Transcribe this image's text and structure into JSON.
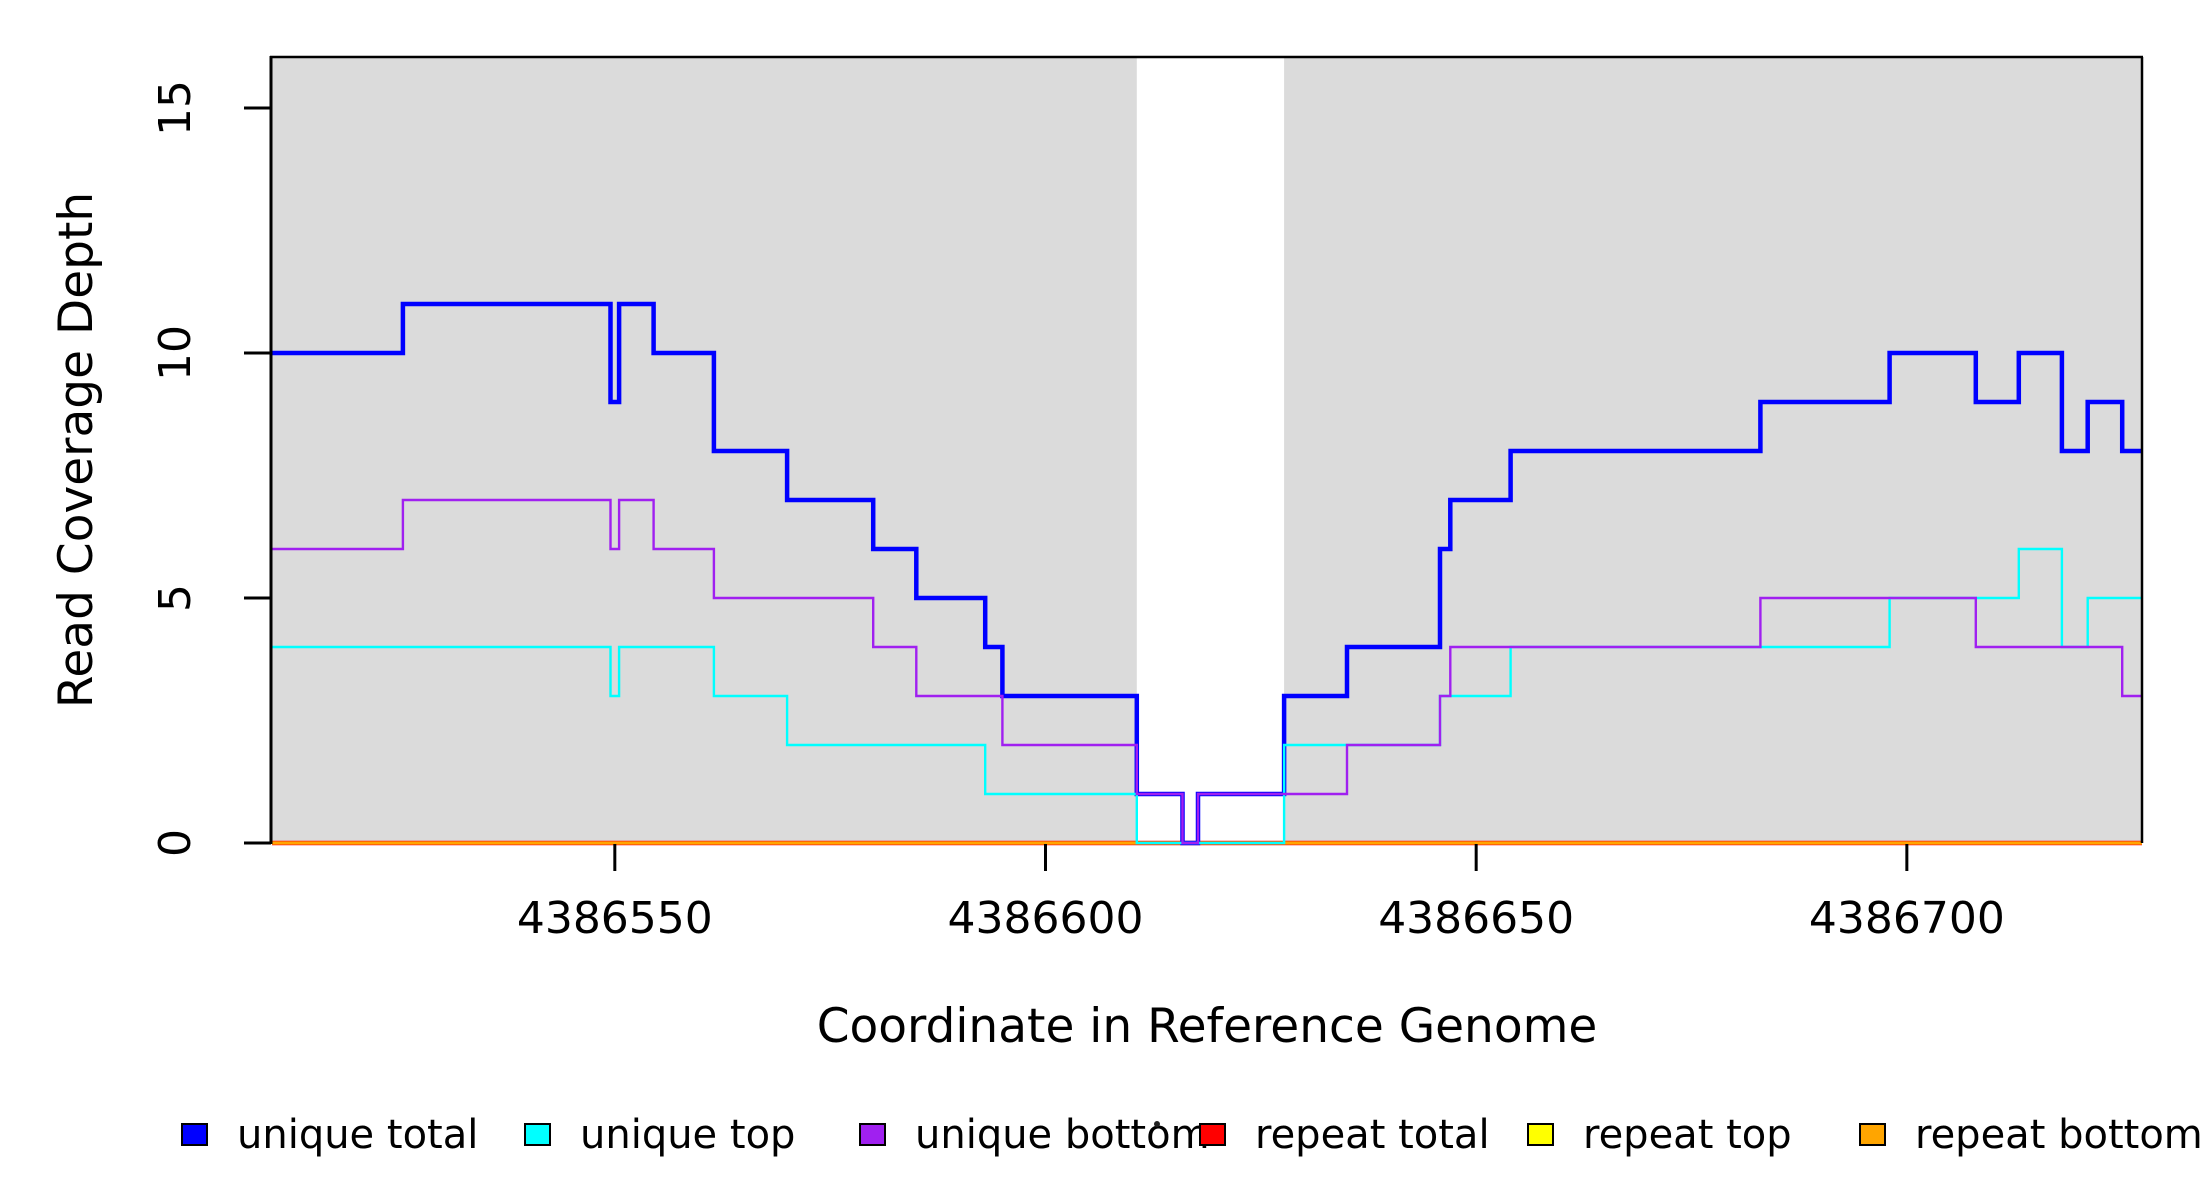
{
  "figure": {
    "background": "#ffffff",
    "panel_fill": "#ffffff",
    "panel_border_color": "#000000",
    "shaded_region_color": "#dbdbdb"
  },
  "chart_data": {
    "type": "line",
    "subtype": "step-coverage",
    "title": "",
    "xlabel": "Coordinate in Reference Genome",
    "ylabel": "Read Coverage Depth",
    "xlim": [
      4386510.2,
      4386727.3
    ],
    "ylim": [
      0,
      16.04
    ],
    "grid": false,
    "x_ticks": [
      {
        "value": 4386550,
        "label": "4386550"
      },
      {
        "value": 4386600,
        "label": "4386600"
      },
      {
        "value": 4386650,
        "label": "4386650"
      },
      {
        "value": 4386700,
        "label": "4386700"
      }
    ],
    "y_ticks": [
      {
        "value": 0,
        "label": "0"
      },
      {
        "value": 5,
        "label": "5"
      },
      {
        "value": 10,
        "label": "10"
      },
      {
        "value": 15,
        "label": "15"
      }
    ],
    "shaded_regions": [
      {
        "x1": 4386510.2,
        "x2": 4386610.6
      },
      {
        "x1": 4386627.7,
        "x2": 4386727.3
      }
    ],
    "white_gap_region": {
      "x1": 4386610.6,
      "x2": 4386627.7
    },
    "draw_order": [
      "repeat total",
      "repeat top",
      "repeat bottom",
      "unique total",
      "unique top",
      "unique bottom"
    ],
    "series": [
      {
        "name": "unique total",
        "color": "#0000ff",
        "line_width": 4.5,
        "steps": [
          [
            4386510.2,
            10
          ],
          [
            4386525.4,
            11
          ],
          [
            4386549.5,
            9
          ],
          [
            4386550.5,
            11
          ],
          [
            4386554.5,
            10
          ],
          [
            4386561.5,
            8
          ],
          [
            4386570,
            7
          ],
          [
            4386580,
            6
          ],
          [
            4386585,
            5
          ],
          [
            4386593,
            4
          ],
          [
            4386595,
            3
          ],
          [
            4386610.6,
            1
          ],
          [
            4386615.9,
            0
          ],
          [
            4386617.7,
            1
          ],
          [
            4386627.7,
            3
          ],
          [
            4386635,
            4
          ],
          [
            4386645.8,
            6
          ],
          [
            4386647,
            7
          ],
          [
            4386654,
            8
          ],
          [
            4386683,
            9
          ],
          [
            4386698,
            10
          ],
          [
            4386708,
            9
          ],
          [
            4386713,
            10
          ],
          [
            4386718,
            8
          ],
          [
            4386721,
            9
          ],
          [
            4386725,
            8
          ]
        ]
      },
      {
        "name": "unique top",
        "color": "#00ffff",
        "line_width": 2.4,
        "steps": [
          [
            4386510.2,
            4
          ],
          [
            4386549.5,
            3
          ],
          [
            4386550.5,
            4
          ],
          [
            4386561.5,
            3
          ],
          [
            4386570,
            2
          ],
          [
            4386593,
            1
          ],
          [
            4386610.6,
            0
          ],
          [
            4386627.7,
            2
          ],
          [
            4386645.8,
            3
          ],
          [
            4386654,
            4
          ],
          [
            4386698,
            5
          ],
          [
            4386713,
            6
          ],
          [
            4386718,
            4
          ],
          [
            4386721,
            5
          ]
        ]
      },
      {
        "name": "unique bottom",
        "color": "#a020f0",
        "line_width": 2.4,
        "steps": [
          [
            4386510.2,
            6
          ],
          [
            4386525.4,
            7
          ],
          [
            4386549.5,
            6
          ],
          [
            4386550.5,
            7
          ],
          [
            4386554.5,
            6
          ],
          [
            4386561.5,
            5
          ],
          [
            4386580,
            4
          ],
          [
            4386585,
            3
          ],
          [
            4386595,
            2
          ],
          [
            4386610.6,
            1
          ],
          [
            4386615.9,
            0
          ],
          [
            4386617.7,
            1
          ],
          [
            4386635,
            2
          ],
          [
            4386645.8,
            3
          ],
          [
            4386647,
            4
          ],
          [
            4386683,
            5
          ],
          [
            4386708,
            4
          ],
          [
            4386725,
            3
          ]
        ]
      },
      {
        "name": "repeat total",
        "color": "#ff0000",
        "line_width": 4.5,
        "steps": [
          [
            4386510.2,
            0
          ]
        ]
      },
      {
        "name": "repeat top",
        "color": "#ffff00",
        "line_width": 2.4,
        "steps": [
          [
            4386510.2,
            0
          ]
        ]
      },
      {
        "name": "repeat bottom",
        "color": "#ffa500",
        "line_width": 3.2,
        "steps": [
          [
            4386510.2,
            0
          ]
        ]
      }
    ]
  },
  "legend": {
    "swatch_border_color": "#000000",
    "stray_dot": "·",
    "items": [
      {
        "label": "unique total",
        "color": "#0000ff"
      },
      {
        "label": "unique top",
        "color": "#00ffff"
      },
      {
        "label": "unique bottom",
        "color": "#a020f0"
      },
      {
        "label": "repeat total",
        "color": "#ff0000"
      },
      {
        "label": "repeat top",
        "color": "#ffff00"
      },
      {
        "label": "repeat bottom",
        "color": "#ffa500"
      }
    ]
  }
}
